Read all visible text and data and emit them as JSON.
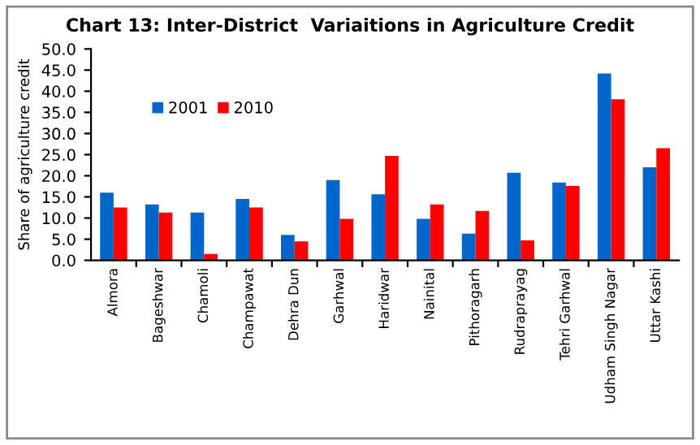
{
  "chart_data": {
    "type": "bar",
    "title": "Chart 13: Inter-District  Variaitions in Agriculture Credit",
    "ylabel": "Share of agriculture credit",
    "categories": [
      "Almora",
      "Bageshwar",
      "Chamoli",
      "Champawat",
      "Dehra Dun",
      "Garhwal",
      "Haridwar",
      "Nainital",
      "Pithoragarh",
      "Rudraprayag",
      "Tehri Garhwal",
      "Udham Singh Nagar",
      "Uttar Kashi"
    ],
    "series": [
      {
        "name": "2001",
        "color": "#0066cc",
        "values": [
          16.0,
          13.2,
          11.3,
          14.5,
          6.0,
          19.0,
          15.6,
          9.8,
          6.3,
          20.7,
          18.4,
          44.2,
          22.0
        ]
      },
      {
        "name": "2010",
        "color": "#ff0000",
        "values": [
          12.5,
          11.3,
          1.5,
          12.5,
          4.5,
          9.8,
          24.7,
          13.2,
          11.7,
          4.7,
          17.6,
          38.1,
          26.5
        ]
      }
    ],
    "ylim": [
      0,
      50
    ],
    "yticks": [
      {
        "value": 0,
        "label": "0.0"
      },
      {
        "value": 5,
        "label": "5.0"
      },
      {
        "value": 10,
        "label": "10.0"
      },
      {
        "value": 15,
        "label": "15.0"
      },
      {
        "value": 20,
        "label": "20.0"
      },
      {
        "value": 25,
        "label": "25.0"
      },
      {
        "value": 30,
        "label": "30.0"
      },
      {
        "value": 35,
        "label": "35.0"
      },
      {
        "value": 40,
        "label": "40.0"
      },
      {
        "value": 45,
        "label": "45.0"
      },
      {
        "value": 50,
        "label": "50.0"
      }
    ],
    "grid": false,
    "legend": "top left"
  }
}
